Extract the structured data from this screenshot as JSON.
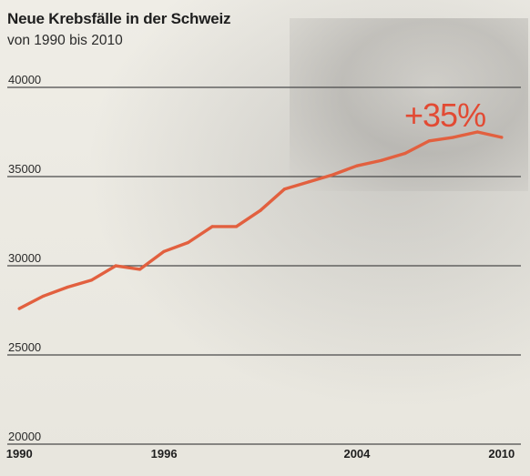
{
  "chart_data": {
    "type": "line",
    "title": "Neue Krebsfälle in der Schweiz",
    "subtitle": "von 1990 bis 2010",
    "ylim": [
      20000,
      40000
    ],
    "yticks": [
      20000,
      25000,
      30000,
      35000,
      40000
    ],
    "ytick_labels": [
      "20000",
      "25000",
      "30000",
      "35000",
      "40000"
    ],
    "xlim": [
      1989.5,
      2010.8
    ],
    "xticks": [
      1990,
      1996,
      2004,
      2010
    ],
    "xtick_labels": [
      "1990",
      "1996",
      "2004",
      "2010"
    ],
    "grid": true,
    "series": [
      {
        "color": "#e2603f",
        "x": [
          1990,
          1991,
          1992,
          1993,
          1994,
          1995,
          1996,
          1997,
          1998,
          1999,
          2000,
          2001,
          2002,
          2003,
          2004,
          2005,
          2006,
          2007,
          2008,
          2009,
          2010
        ],
        "values": [
          27600,
          28300,
          28800,
          29200,
          30000,
          29800,
          30800,
          31300,
          32200,
          32200,
          33100,
          34300,
          34700,
          35100,
          35600,
          35900,
          36300,
          37000,
          37200,
          37500,
          37200
        ]
      }
    ],
    "annotation": "+35%"
  },
  "colors": {
    "line": "#e2603f",
    "annotation": "#e24a33",
    "grid": "#4a4a4a"
  }
}
